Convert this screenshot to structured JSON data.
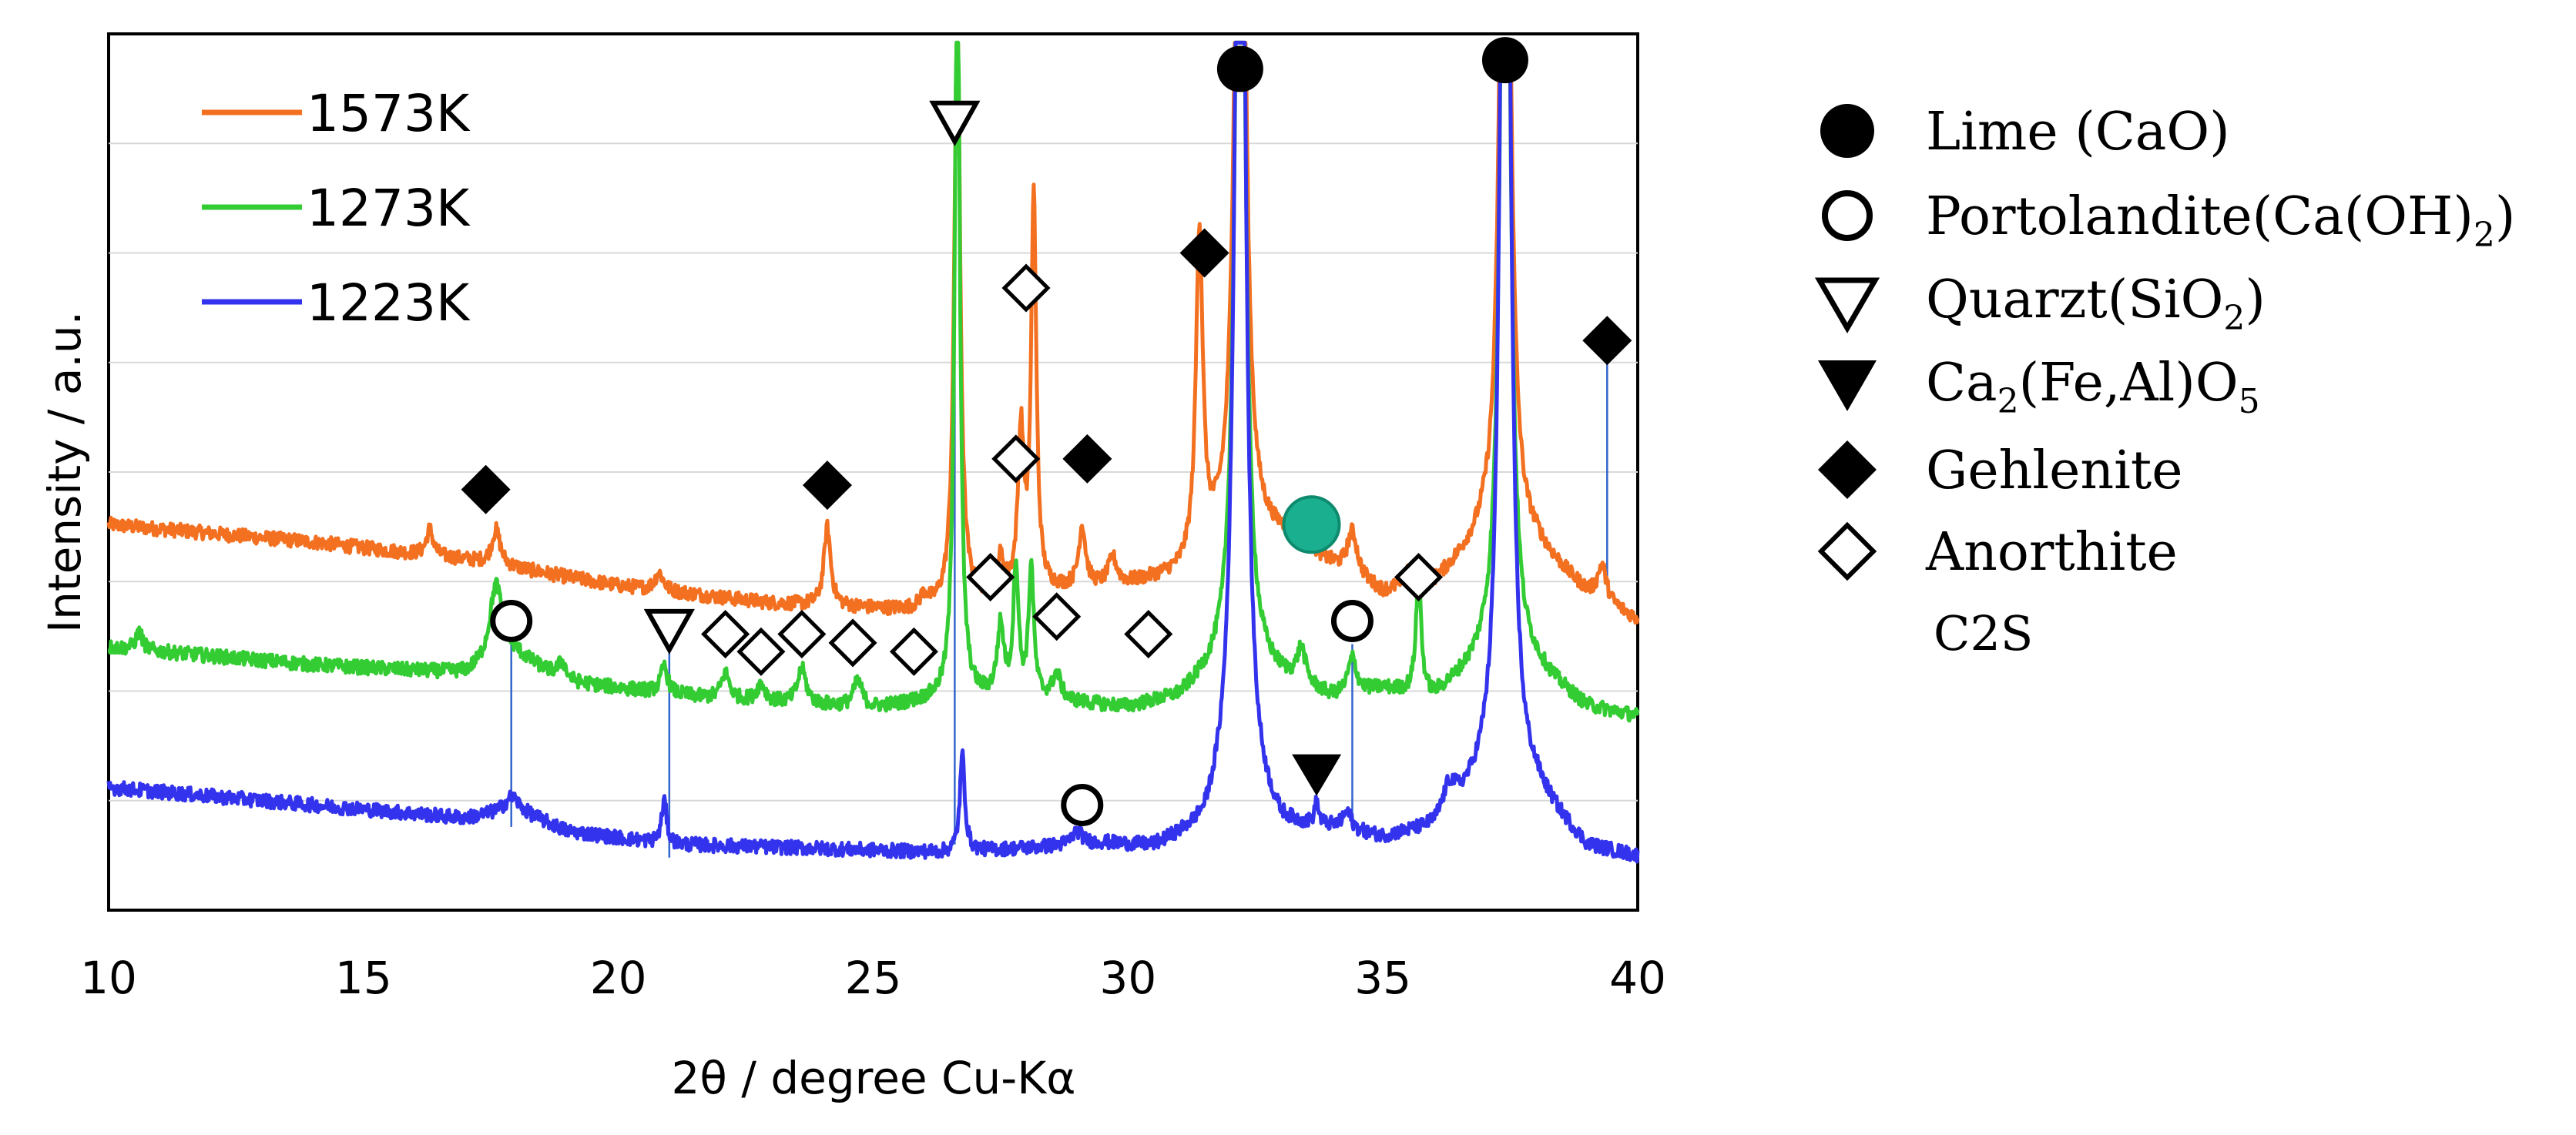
{
  "chart_data": {
    "type": "line",
    "title": "",
    "xlabel": "2θ  / degree Cu-Kα",
    "ylabel": "Intensity / a.u.",
    "xlim": [
      10,
      40
    ],
    "ylim": [
      0,
      100
    ],
    "x_ticks": [
      "10",
      "15",
      "20",
      "25",
      "30",
      "35",
      "40"
    ],
    "y_ticks_labeled": false,
    "series": [
      {
        "name": "1573K",
        "color": "#f37021",
        "baseline": [
          [
            10,
            44
          ],
          [
            14,
            42
          ],
          [
            17,
            40
          ],
          [
            20,
            37
          ],
          [
            23,
            35
          ],
          [
            26,
            34
          ],
          [
            28,
            36
          ],
          [
            30,
            37
          ],
          [
            31,
            38
          ],
          [
            32,
            42
          ],
          [
            33,
            42
          ],
          [
            34,
            39
          ],
          [
            35,
            36
          ],
          [
            36,
            37
          ],
          [
            37,
            42
          ],
          [
            38,
            41
          ],
          [
            39,
            36
          ],
          [
            40,
            33
          ]
        ],
        "peaks": [
          [
            16.3,
            3,
            0.08
          ],
          [
            17.6,
            4,
            0.1
          ],
          [
            20.8,
            2,
            0.1
          ],
          [
            24.1,
            9,
            0.08
          ],
          [
            26.0,
            1.5,
            0.1
          ],
          [
            26.65,
            68,
            0.07
          ],
          [
            27.5,
            4,
            0.08
          ],
          [
            27.9,
            18,
            0.07
          ],
          [
            28.15,
            45,
            0.06
          ],
          [
            29.1,
            7,
            0.08
          ],
          [
            29.7,
            3,
            0.1
          ],
          [
            31.4,
            37,
            0.08
          ],
          [
            32.2,
            130,
            0.1
          ],
          [
            33.4,
            4,
            0.1
          ],
          [
            34.4,
            5,
            0.12
          ],
          [
            35.5,
            2,
            0.1
          ],
          [
            37.4,
            130,
            0.1
          ],
          [
            39.3,
            4,
            0.1
          ]
        ]
      },
      {
        "name": "1273K",
        "color": "#33cc33",
        "baseline": [
          [
            10,
            30
          ],
          [
            14,
            28
          ],
          [
            17,
            27
          ],
          [
            18,
            29
          ],
          [
            19,
            26
          ],
          [
            22,
            24
          ],
          [
            25,
            23
          ],
          [
            26.5,
            24
          ],
          [
            28,
            24
          ],
          [
            30,
            23
          ],
          [
            31,
            24
          ],
          [
            32,
            28
          ],
          [
            33,
            26
          ],
          [
            34,
            24
          ],
          [
            35,
            25
          ],
          [
            36,
            24
          ],
          [
            37,
            28
          ],
          [
            38,
            27
          ],
          [
            39,
            23
          ],
          [
            40,
            22
          ]
        ],
        "peaks": [
          [
            10.6,
            2,
            0.08
          ],
          [
            17.6,
            9,
            0.15
          ],
          [
            18.9,
            2,
            0.1
          ],
          [
            20.9,
            3,
            0.08
          ],
          [
            22.1,
            3,
            0.1
          ],
          [
            22.8,
            2,
            0.1
          ],
          [
            23.6,
            4,
            0.1
          ],
          [
            24.7,
            3,
            0.1
          ],
          [
            26.65,
            88,
            0.06
          ],
          [
            27.5,
            8,
            0.08
          ],
          [
            27.8,
            15,
            0.06
          ],
          [
            28.1,
            15,
            0.06
          ],
          [
            28.6,
            3,
            0.1
          ],
          [
            32.2,
            130,
            0.1
          ],
          [
            33.4,
            4,
            0.1
          ],
          [
            34.4,
            4,
            0.1
          ],
          [
            35.7,
            14,
            0.06
          ],
          [
            37.4,
            130,
            0.1
          ]
        ]
      },
      {
        "name": "1223K",
        "color": "#3333ee",
        "baseline": [
          [
            10,
            14
          ],
          [
            14,
            12
          ],
          [
            17,
            10.5
          ],
          [
            18,
            11.5
          ],
          [
            19,
            9
          ],
          [
            21,
            7.5
          ],
          [
            24,
            7
          ],
          [
            26.5,
            6.5
          ],
          [
            28,
            7
          ],
          [
            29.5,
            7.5
          ],
          [
            30.5,
            7
          ],
          [
            31.5,
            9
          ],
          [
            32,
            14
          ],
          [
            33,
            9
          ],
          [
            34,
            9
          ],
          [
            35,
            8
          ],
          [
            36,
            9
          ],
          [
            37,
            14
          ],
          [
            38,
            13
          ],
          [
            39,
            7
          ],
          [
            40,
            6
          ]
        ],
        "peaks": [
          [
            17.9,
            1.5,
            0.15
          ],
          [
            20.9,
            5,
            0.06
          ],
          [
            26.75,
            11,
            0.06
          ],
          [
            29.0,
            1.5,
            0.12
          ],
          [
            32.2,
            165,
            0.1
          ],
          [
            33.7,
            2.5,
            0.05
          ],
          [
            34.3,
            2,
            0.1
          ],
          [
            36.3,
            3,
            0.15
          ],
          [
            37.4,
            165,
            0.1
          ]
        ]
      }
    ],
    "phase_markers": [
      {
        "phase": "lime",
        "x": 32.2,
        "y": 96,
        "line_to": null
      },
      {
        "phase": "lime",
        "x": 37.4,
        "y": 97,
        "line_to": null
      },
      {
        "phase": "quartz",
        "x": 26.6,
        "y": 90,
        "line_to": 7.5
      },
      {
        "phase": "quartz",
        "x": 21.0,
        "y": 32,
        "line_to": 6
      },
      {
        "phase": "portlandite",
        "x": 17.9,
        "y": 33,
        "line_to": 9.5
      },
      {
        "phase": "portlandite",
        "x": 34.4,
        "y": 33,
        "line_to": 11
      },
      {
        "phase": "portlandite",
        "x": 29.1,
        "y": 12,
        "line_to": null
      },
      {
        "phase": "gehlenite",
        "x": 31.5,
        "y": 75,
        "line_to": null
      },
      {
        "phase": "gehlenite",
        "x": 17.4,
        "y": 48,
        "line_to": null
      },
      {
        "phase": "gehlenite",
        "x": 24.1,
        "y": 48.5,
        "line_to": null
      },
      {
        "phase": "gehlenite",
        "x": 29.2,
        "y": 51.5,
        "line_to": null
      },
      {
        "phase": "gehlenite",
        "x": 39.4,
        "y": 65,
        "line_to": 38
      },
      {
        "phase": "anorthite",
        "x": 28.0,
        "y": 71,
        "line_to": null
      },
      {
        "phase": "anorthite",
        "x": 27.8,
        "y": 51.5,
        "line_to": null
      },
      {
        "phase": "anorthite",
        "x": 27.3,
        "y": 38,
        "line_to": null
      },
      {
        "phase": "anorthite",
        "x": 35.7,
        "y": 38,
        "line_to": null
      },
      {
        "phase": "anorthite",
        "x": 28.6,
        "y": 33.5,
        "line_to": null
      },
      {
        "phase": "anorthite",
        "x": 30.4,
        "y": 31.5,
        "line_to": null
      },
      {
        "phase": "anorthite",
        "x": 22.1,
        "y": 31.5,
        "line_to": null
      },
      {
        "phase": "anorthite",
        "x": 22.8,
        "y": 29.5,
        "line_to": null
      },
      {
        "phase": "anorthite",
        "x": 23.6,
        "y": 31.5,
        "line_to": null
      },
      {
        "phase": "anorthite",
        "x": 24.6,
        "y": 30.5,
        "line_to": null
      },
      {
        "phase": "anorthite",
        "x": 25.8,
        "y": 29.5,
        "line_to": null
      },
      {
        "phase": "brownmillerite",
        "x": 33.7,
        "y": 15.5,
        "line_to": null
      },
      {
        "phase": "c2s",
        "x": 33.6,
        "y": 44,
        "line_to": null
      }
    ],
    "series_legend_position": "top-left"
  },
  "phase_legend": {
    "lime": "Lime (CaO)",
    "portlandite": "Portolandite(Ca(OH)",
    "portlandite_sub": "2",
    "portlandite_end": ")",
    "quartz": "Quarzt(SiO",
    "quartz_sub": "2",
    "quartz_end": ")",
    "brownmillerite": "Ca",
    "brownmillerite_sub": "2",
    "brownmillerite_mid": "(Fe,Al)O",
    "brownmillerite_sub2": "5",
    "gehlenite": "Gehlenite",
    "anorthite": "Anorthite",
    "c2s": "C2S"
  },
  "colors": {
    "c2s_marker": "#1aaf8f",
    "c2s_marker_edge": "#0e8a6e",
    "droplines": "#3366cc"
  }
}
